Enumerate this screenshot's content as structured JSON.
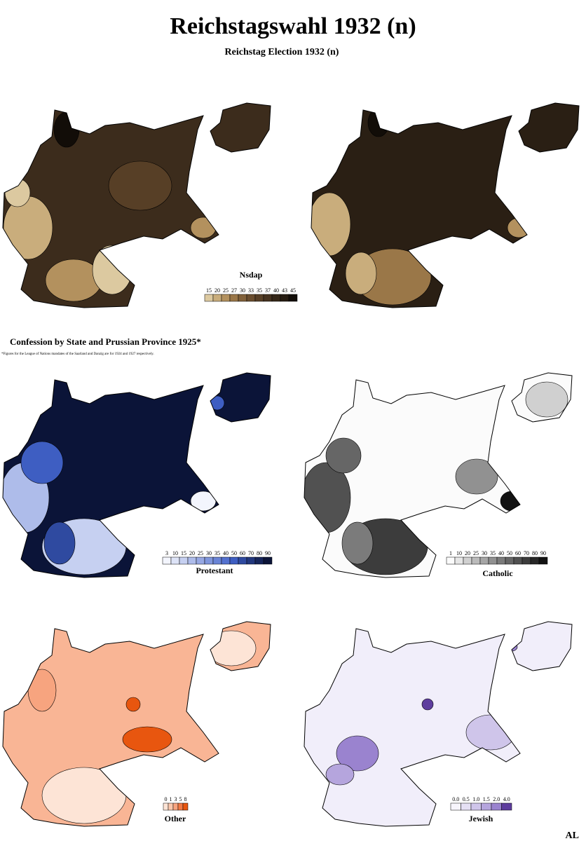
{
  "header": {
    "title": "Reichstagswahl 1932 (n)",
    "subtitle": "Reichstag Election 1932 (n)"
  },
  "section": {
    "title": "Confession by State and Prussian Province 1925*",
    "footnote": "*Figures for the League of Nations mandates of the Saarland and Danzig are for 1924 and 1927 respectively."
  },
  "legends": [
    {
      "title": "Nsdap",
      "labels": [
        "15",
        "20",
        "25",
        "27",
        "30",
        "33",
        "35",
        "37",
        "40",
        "43",
        "45"
      ],
      "colors": [
        "#dcc9a0",
        "#c9ad7c",
        "#b3915e",
        "#9a7748",
        "#816039",
        "#6a4d2e",
        "#573f26",
        "#45321f",
        "#352718",
        "#251b11",
        "#120d08"
      ]
    },
    {
      "title": "Protestant",
      "labels": [
        "3",
        "10",
        "15",
        "20",
        "25",
        "30",
        "35",
        "40",
        "50",
        "60",
        "70",
        "80",
        "90"
      ],
      "colors": [
        "#f3f5fd",
        "#dde3f7",
        "#c6d0f1",
        "#aebcea",
        "#97a8e3",
        "#8096dc",
        "#6a84d6",
        "#5471cf",
        "#3e5ec2",
        "#2f4aa0",
        "#22377d",
        "#16255a",
        "#0b1438"
      ]
    },
    {
      "title": "Catholic",
      "labels": [
        "1",
        "10",
        "20",
        "25",
        "30",
        "35",
        "40",
        "50",
        "60",
        "70",
        "80",
        "90"
      ],
      "colors": [
        "#fbfbfb",
        "#e6e6e6",
        "#d0d0d0",
        "#bbbbbb",
        "#a6a6a6",
        "#919191",
        "#7b7b7b",
        "#666666",
        "#515151",
        "#3c3c3c",
        "#272727",
        "#121212"
      ]
    },
    {
      "title": "Other",
      "labels": [
        "0",
        "1",
        "3",
        "5",
        "8"
      ],
      "colors": [
        "#fde4d6",
        "#fbc8ad",
        "#f7a47f",
        "#f27a45",
        "#e8560f"
      ]
    },
    {
      "title": "Jewish",
      "labels": [
        "0.0",
        "0.5",
        "1.0",
        "1.5",
        "2.0",
        "4.0"
      ],
      "colors": [
        "#f7f5fc",
        "#e5e0f4",
        "#cfc5ea",
        "#b5a5dd",
        "#9a83cf",
        "#5e3d9e"
      ]
    }
  ],
  "signature": "AL"
}
